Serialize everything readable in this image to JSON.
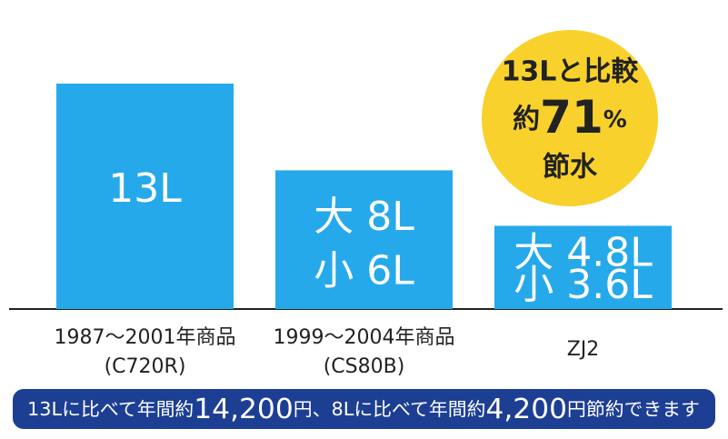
{
  "chart_data": {
    "type": "bar",
    "categories": [
      "1987〜2001年商品",
      "1999〜2004年商品",
      "ZJ2"
    ],
    "category_sublabels": [
      "(C720R)",
      "(CS80B)",
      null
    ],
    "values": [
      13,
      8,
      4.8
    ],
    "value_labels": [
      "13L",
      "大 8L",
      "大 4.8L"
    ],
    "secondary_labels": [
      null,
      "小 6L",
      "小 3.6L"
    ],
    "color": "#26a9ea",
    "badge": {
      "line1": "13Lと比較",
      "prefix": "約",
      "number": "71",
      "unit": "%",
      "line3": "節水",
      "color": "#f8d12c"
    },
    "footer": {
      "parts": [
        "13Lに比べて年間約",
        "14,200",
        "円、8Lに比べて年間約",
        "4,200",
        "円節約できます"
      ],
      "color": "#1d3f93"
    }
  }
}
